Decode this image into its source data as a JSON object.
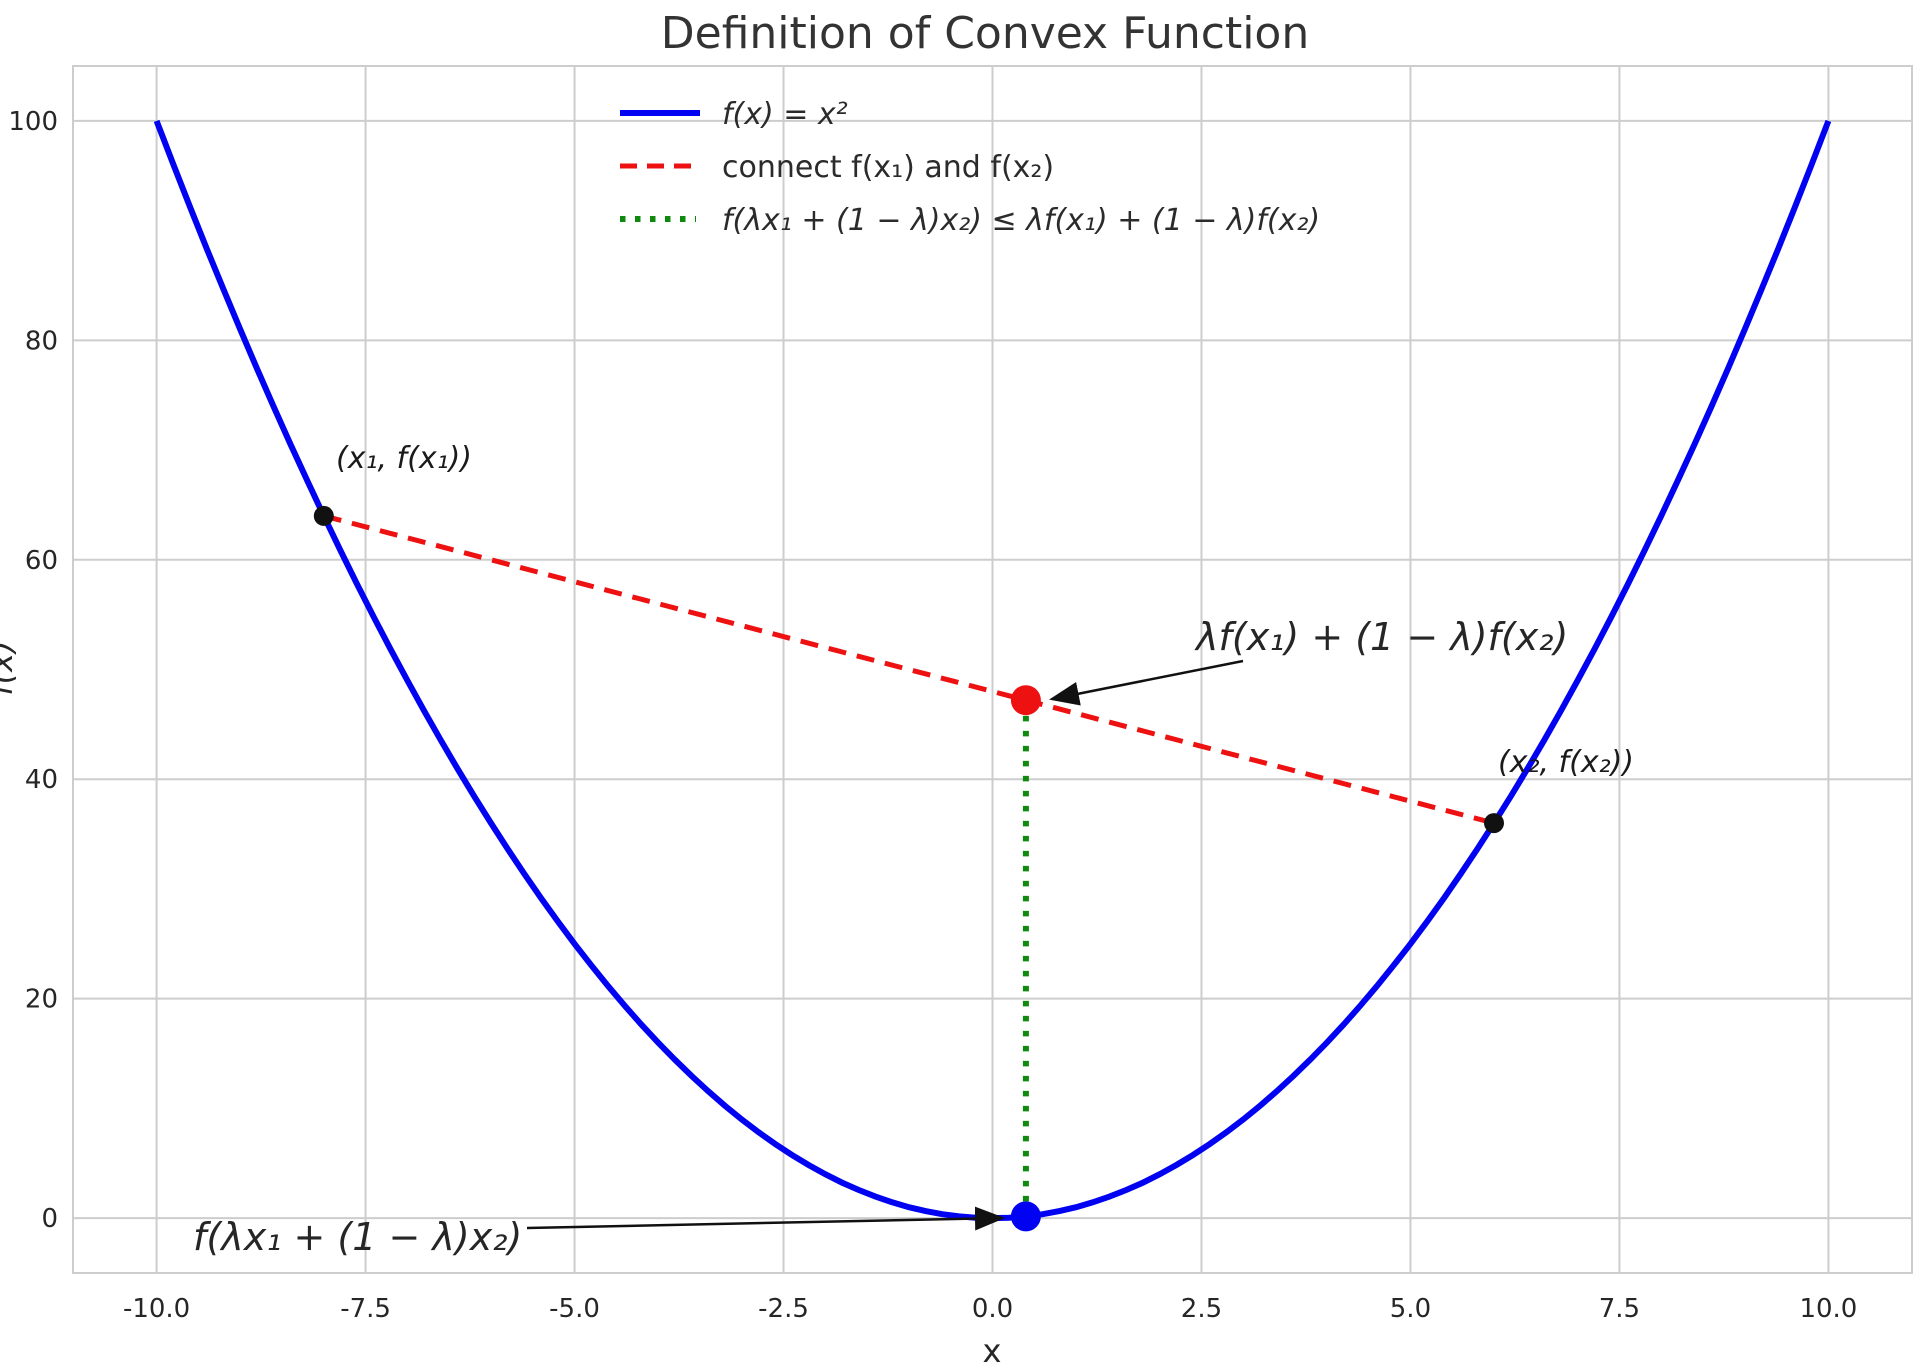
{
  "chart_data": {
    "type": "line",
    "title": "Definition of Convex Function",
    "xlabel": "x",
    "ylabel": "f(x)",
    "xlim": [
      -11,
      11
    ],
    "ylim": [
      -5,
      105
    ],
    "x_ticks": [
      "-10.0",
      "-7.5",
      "-5.0",
      "-2.5",
      "0.0",
      "2.5",
      "5.0",
      "7.5",
      "10.0"
    ],
    "y_ticks": [
      "0",
      "20",
      "40",
      "60",
      "80",
      "100"
    ],
    "grid": true,
    "grid_color": "#cdcdcd",
    "background": "#ffffff",
    "legend_position": "upper left",
    "series": [
      {
        "id": "curve",
        "name": "f(x) = x²",
        "style": "solid",
        "color": "#0202f2",
        "fn": "x^2",
        "x_range": [
          -10,
          10
        ]
      },
      {
        "id": "chord",
        "name": "connect f(x₁) and f(x₂)",
        "style": "dashed",
        "color": "#ee1111",
        "points": [
          [
            -8,
            64
          ],
          [
            6,
            36
          ]
        ]
      },
      {
        "id": "inequality",
        "name": "f(λx₁ + (1 − λ)x₂) ≤ λf(x₁) + (1 − λ)f(x₂)",
        "style": "dotted",
        "color": "#0f8a0f",
        "points": [
          [
            0.4,
            0.16
          ],
          [
            0.4,
            47.2
          ]
        ]
      }
    ],
    "markers": [
      {
        "id": "x1",
        "label": "(x₁, f(x₁))",
        "x": -8,
        "y": 64,
        "color": "#111111"
      },
      {
        "id": "x2",
        "label": "(x₂, f(x₂))",
        "x": 6,
        "y": 36,
        "color": "#111111"
      },
      {
        "id": "chord_point",
        "label": "λf(x₁) + (1 − λ)f(x₂)",
        "x": 0.4,
        "y": 47.2,
        "color": "#ee1111"
      },
      {
        "id": "curve_point",
        "label": "f(λx₁ + (1 − λ)x₂)",
        "x": 0.4,
        "y": 0.16,
        "color": "#0202f2"
      }
    ]
  },
  "legend": {
    "items": [
      {
        "label": "f(x) = x²"
      },
      {
        "label": "connect f(x₁) and f(x₂)"
      },
      {
        "label": "f(λx₁ + (1 − λ)x₂) ≤ λf(x₁) + (1 − λ)f(x₂)"
      }
    ]
  },
  "annotations": {
    "point1_label": "(x₁, f(x₁))",
    "point2_label": "(x₂, f(x₂))",
    "chord_point_label": "λf(x₁) + (1 − λ)f(x₂)",
    "curve_point_label": "f(λx₁ + (1 − λ)x₂)"
  }
}
